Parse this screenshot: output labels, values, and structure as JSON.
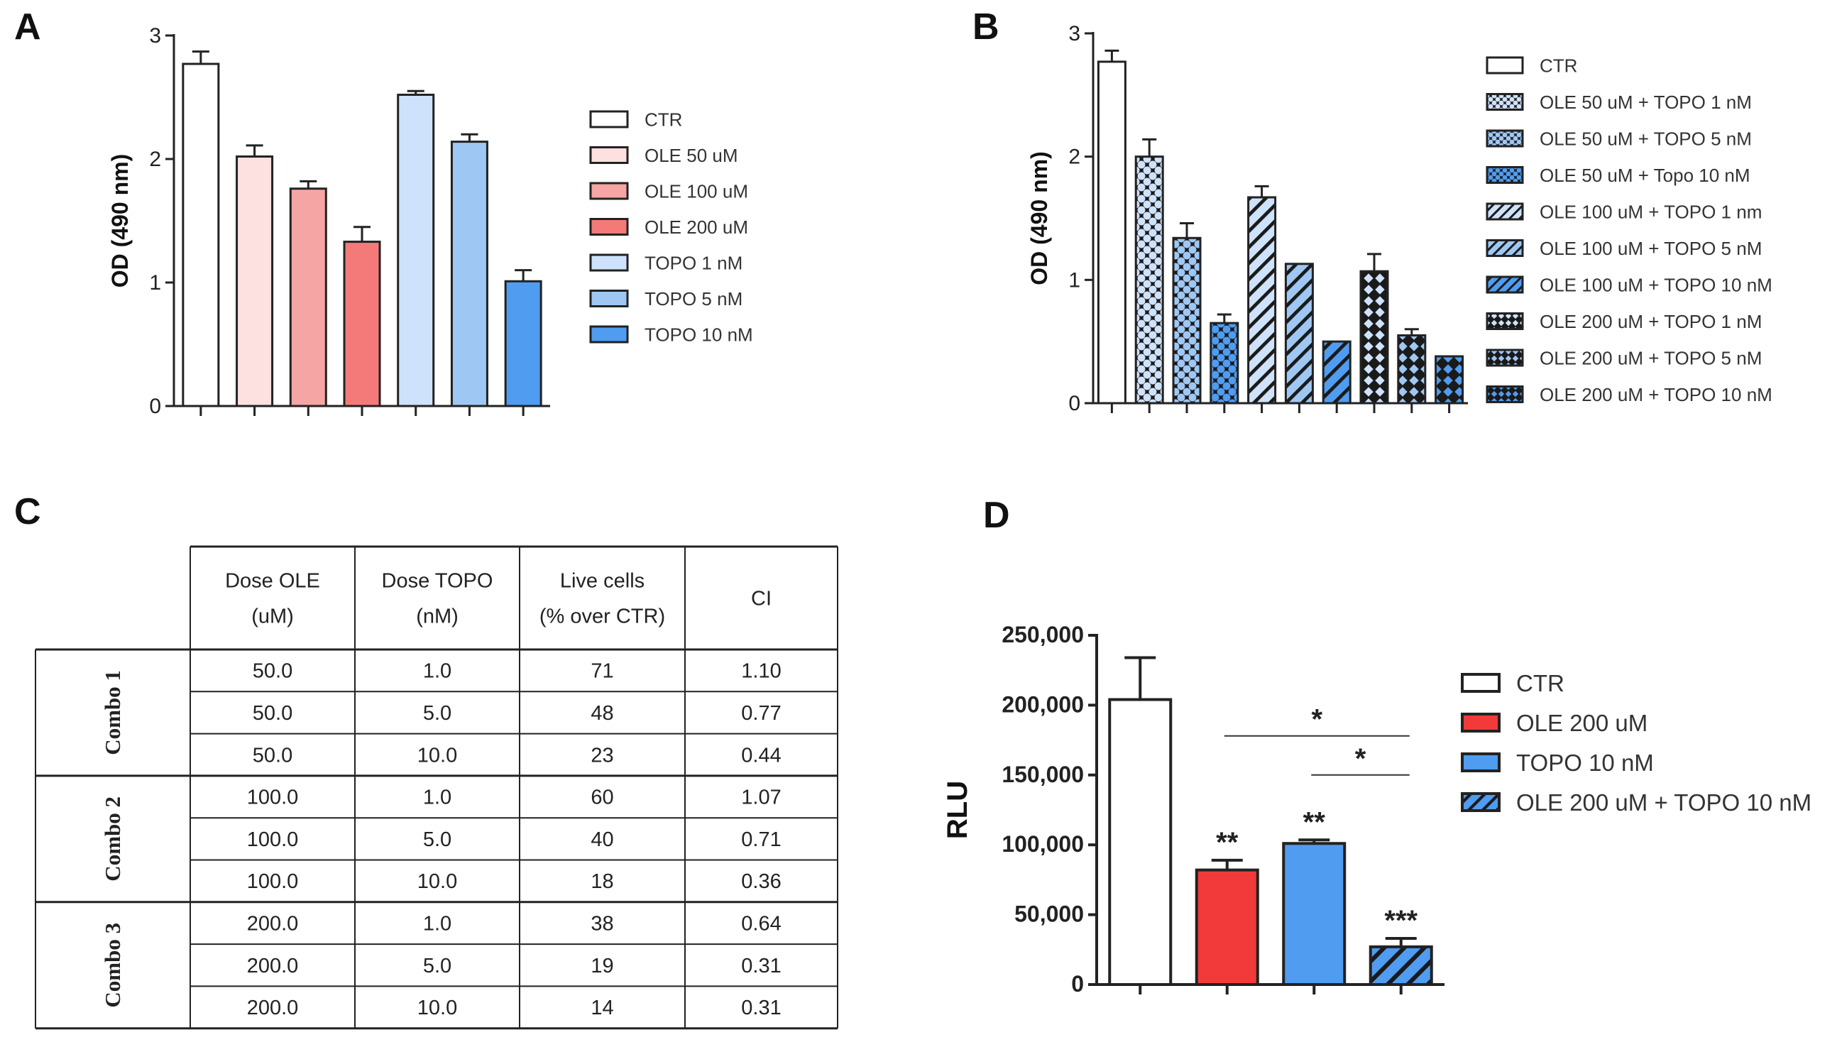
{
  "panel_labels": {
    "a": "A",
    "b": "B",
    "c": "C",
    "d": "D"
  },
  "colors": {
    "ctr": "#ffffff",
    "ole50": "#fde0e0",
    "ole100": "#f6a5a5",
    "ole200": "#f47a7a",
    "ole200_d": "#f23a3a",
    "topo1": "#cfe2fb",
    "topo5": "#9fc7f4",
    "topo10": "#4f9cf0",
    "outline": "#000000"
  },
  "chart_data": [
    {
      "id": "A",
      "type": "bar",
      "ylabel": "OD (490 nm)",
      "ylim": [
        0,
        3
      ],
      "yticks": [
        0,
        1,
        2,
        3
      ],
      "series": [
        {
          "name": "CTR",
          "value": 2.77,
          "err": 0.1,
          "color": "ctr"
        },
        {
          "name": "OLE 50 uM",
          "value": 2.02,
          "err": 0.09,
          "color": "ole50"
        },
        {
          "name": "OLE 100 uM",
          "value": 1.76,
          "err": 0.06,
          "color": "ole100"
        },
        {
          "name": "OLE 200 uM",
          "value": 1.33,
          "err": 0.12,
          "color": "ole200"
        },
        {
          "name": "TOPO 1 nM",
          "value": 2.52,
          "err": 0.03,
          "color": "topo1"
        },
        {
          "name": "TOPO 5 nM",
          "value": 2.14,
          "err": 0.06,
          "color": "topo5"
        },
        {
          "name": "TOPO 10 nM",
          "value": 1.01,
          "err": 0.09,
          "color": "topo10"
        }
      ],
      "legend_position": "right"
    },
    {
      "id": "B",
      "type": "bar",
      "ylabel": "OD (490 nm)",
      "ylim": [
        0,
        3
      ],
      "yticks": [
        0,
        1,
        2,
        3
      ],
      "series": [
        {
          "name": "CTR",
          "value": 2.77,
          "err": 0.09,
          "color": "ctr",
          "pattern": "none"
        },
        {
          "name": "OLE 50 uM + TOPO 1 nM",
          "value": 2.0,
          "err": 0.14,
          "color": "topo1",
          "pattern": "checker"
        },
        {
          "name": "OLE 50 uM + TOPO 5 nM",
          "value": 1.34,
          "err": 0.12,
          "color": "topo5",
          "pattern": "checker"
        },
        {
          "name": "OLE 50 uM + Topo 10 nM",
          "value": 0.65,
          "err": 0.07,
          "color": "topo10",
          "pattern": "checker"
        },
        {
          "name": "OLE 100 uM + TOPO 1 nm",
          "value": 1.67,
          "err": 0.09,
          "color": "topo1",
          "pattern": "diag"
        },
        {
          "name": "OLE 100 uM + TOPO 5 nM",
          "value": 1.13,
          "err": 0.0,
          "color": "topo5",
          "pattern": "diag"
        },
        {
          "name": "OLE 100 uM + TOPO 10 nM",
          "value": 0.5,
          "err": 0.0,
          "color": "topo10",
          "pattern": "diag"
        },
        {
          "name": "OLE 200 uM + TOPO 1 nM",
          "value": 1.07,
          "err": 0.14,
          "color": "topo1",
          "pattern": "cross"
        },
        {
          "name": "OLE 200 uM + TOPO 5 nM",
          "value": 0.55,
          "err": 0.05,
          "color": "topo5",
          "pattern": "cross"
        },
        {
          "name": "OLE 200 uM + TOPO 10 nM",
          "value": 0.38,
          "err": 0.0,
          "color": "topo10",
          "pattern": "cross"
        }
      ],
      "legend_position": "right"
    },
    {
      "id": "C",
      "type": "table",
      "columns": [
        "Dose OLE (uM)",
        "Dose TOPO (nM)",
        "Live cells (% over CTR)",
        "CI"
      ],
      "header_lines": [
        [
          "Dose OLE",
          "(uM)"
        ],
        [
          "Dose TOPO",
          "(nM)"
        ],
        [
          "Live cells",
          "(% over CTR)"
        ],
        [
          "CI"
        ]
      ],
      "groups": [
        "Combo 1",
        "Combo 2",
        "Combo 3"
      ],
      "rows": [
        [
          "50.0",
          "1.0",
          "71",
          "1.10"
        ],
        [
          "50.0",
          "5.0",
          "48",
          "0.77"
        ],
        [
          "50.0",
          "10.0",
          "23",
          "0.44"
        ],
        [
          "100.0",
          "1.0",
          "60",
          "1.07"
        ],
        [
          "100.0",
          "5.0",
          "40",
          "0.71"
        ],
        [
          "100.0",
          "10.0",
          "18",
          "0.36"
        ],
        [
          "200.0",
          "1.0",
          "38",
          "0.64"
        ],
        [
          "200.0",
          "5.0",
          "19",
          "0.31"
        ],
        [
          "200.0",
          "10.0",
          "14",
          "0.31"
        ]
      ]
    },
    {
      "id": "D",
      "type": "bar",
      "ylabel": "RLU",
      "ylim": [
        0,
        250000
      ],
      "yticks": [
        0,
        50000,
        100000,
        150000,
        200000,
        250000
      ],
      "ytick_labels": [
        "0",
        "50,000",
        "100,000",
        "150,000",
        "200,000",
        "250,000"
      ],
      "series": [
        {
          "name": "CTR",
          "value": 204000,
          "err": 30000,
          "color": "ctr",
          "pattern": "none",
          "sig": ""
        },
        {
          "name": "OLE 200 uM",
          "value": 82000,
          "err": 7000,
          "color": "ole200_d",
          "pattern": "none",
          "sig": "**"
        },
        {
          "name": "TOPO 10 nM",
          "value": 101000,
          "err": 2500,
          "color": "topo10",
          "pattern": "none",
          "sig": "**"
        },
        {
          "name": "OLE 200 uM + TOPO 10 nM",
          "value": 27000,
          "err": 6000,
          "color": "topo10",
          "pattern": "diag",
          "sig": "***"
        }
      ],
      "brackets": [
        {
          "from": 1,
          "to": 3,
          "y": 178000,
          "label": "*"
        },
        {
          "from": 2,
          "to": 3,
          "y": 150000,
          "label": "*"
        }
      ],
      "legend_position": "right"
    }
  ]
}
